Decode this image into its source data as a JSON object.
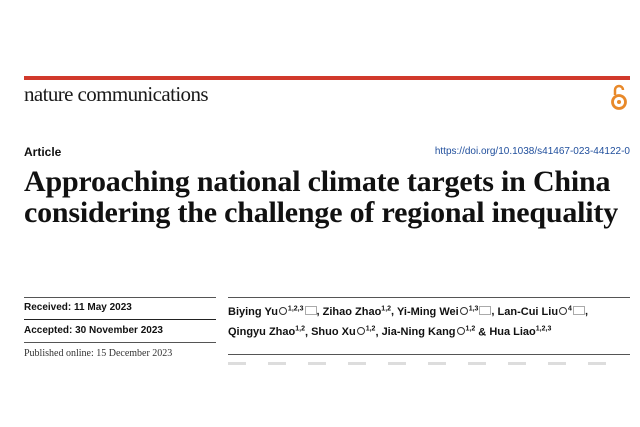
{
  "journal": {
    "name": "nature communications",
    "accent": "#d1392b",
    "open_access_icon": "open-access-icon",
    "oa_color": "#e8892a"
  },
  "article": {
    "type": "Article",
    "doi": "https://doi.org/10.1038/s41467-023-44122-0",
    "title": "Approaching national climate targets in China considering the challenge of regional inequality"
  },
  "dates": {
    "received": "Received: 11 May 2023",
    "accepted": "Accepted: 30 November 2023",
    "published": "Published online: 15 December 2023"
  },
  "authors": [
    {
      "name": "Biying Yu",
      "aff": "1,2,3",
      "orcid": true,
      "email": true
    },
    {
      "name": "Zihao Zhao",
      "aff": "1,2",
      "orcid": false,
      "email": false
    },
    {
      "name": "Yi-Ming Wei",
      "aff": "1,3",
      "orcid": true,
      "email": true
    },
    {
      "name": "Lan-Cui Liu",
      "aff": "4",
      "orcid": true,
      "email": true
    },
    {
      "name": "Qingyu Zhao",
      "aff": "1,2",
      "orcid": false,
      "email": false
    },
    {
      "name": "Shuo Xu",
      "aff": "1,2",
      "orcid": true,
      "email": false
    },
    {
      "name": "Jia-Ning Kang",
      "aff": "1,2",
      "orcid": true,
      "email": false
    },
    {
      "name": "Hua Liao",
      "aff": "1,2,3",
      "orcid": false,
      "email": false
    }
  ]
}
